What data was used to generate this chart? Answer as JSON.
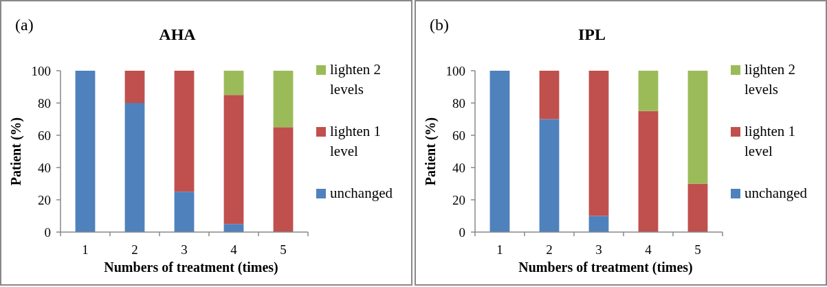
{
  "chart_data": [
    {
      "type": "bar",
      "title": "AHA",
      "xlabel": "Numbers of treatment (times)",
      "ylabel": "Patient (%)",
      "annotations": [
        "(a)"
      ],
      "categories": [
        "1",
        "2",
        "3",
        "4",
        "5"
      ],
      "stacked": true,
      "ylim": [
        0,
        100
      ],
      "yticks": [
        0,
        20,
        40,
        60,
        80,
        100
      ],
      "legend": "right",
      "series": [
        {
          "name": "unchanged",
          "color": "#4f81bd",
          "values": [
            100,
            80,
            25,
            5,
            0
          ]
        },
        {
          "name": "lighten 1 level",
          "color": "#c0504d",
          "values": [
            0,
            20,
            75,
            80,
            65
          ]
        },
        {
          "name": "lighten 2 levels",
          "color": "#9bbb59",
          "values": [
            0,
            0,
            0,
            15,
            35
          ]
        }
      ]
    },
    {
      "type": "bar",
      "title": "IPL",
      "xlabel": "Numbers of treatment (times)",
      "ylabel": "Patient (%)",
      "annotations": [
        "(b)"
      ],
      "categories": [
        "1",
        "2",
        "3",
        "4",
        "5"
      ],
      "stacked": true,
      "ylim": [
        0,
        100
      ],
      "yticks": [
        0,
        20,
        40,
        60,
        80,
        100
      ],
      "legend": "right",
      "series": [
        {
          "name": "unchanged",
          "color": "#4f81bd",
          "values": [
            100,
            70,
            10,
            0,
            0
          ]
        },
        {
          "name": "lighten 1 level",
          "color": "#c0504d",
          "values": [
            0,
            30,
            90,
            75,
            30
          ]
        },
        {
          "name": "lighten 2 levels",
          "color": "#9bbb59",
          "values": [
            0,
            0,
            0,
            25,
            70
          ]
        }
      ]
    }
  ]
}
